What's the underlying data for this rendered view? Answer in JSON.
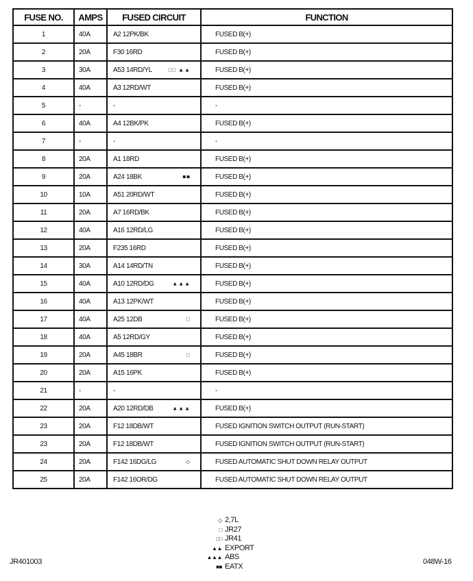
{
  "headers": {
    "fuse_no": "FUSE NO.",
    "amps": "AMPS",
    "circuit": "FUSED CIRCUIT",
    "function": "FUNCTION"
  },
  "rows": [
    {
      "no": "1",
      "amps": "40A",
      "circuit": "A2 12PK/BK",
      "sym": "",
      "function": "FUSED B(+)"
    },
    {
      "no": "2",
      "amps": "20A",
      "circuit": "F30 16RD",
      "sym": "",
      "function": "FUSED B(+)"
    },
    {
      "no": "3",
      "amps": "30A",
      "circuit": "A53 14RD/YL",
      "sym": "□□ ▲▲",
      "function": "FUSED B(+)"
    },
    {
      "no": "4",
      "amps": "40A",
      "circuit": "A3 12RD/WT",
      "sym": "",
      "function": "FUSED B(+)"
    },
    {
      "no": "5",
      "amps": "-",
      "circuit": "-",
      "sym": "",
      "function": "-"
    },
    {
      "no": "6",
      "amps": "40A",
      "circuit": "A4 12BK/PK",
      "sym": "",
      "function": "FUSED B(+)"
    },
    {
      "no": "7",
      "amps": "-",
      "circuit": "-",
      "sym": "",
      "function": "-"
    },
    {
      "no": "8",
      "amps": "20A",
      "circuit": "A1 18RD",
      "sym": "",
      "function": "FUSED B(+)"
    },
    {
      "no": "9",
      "amps": "20A",
      "circuit": "A24 18BK",
      "sym": "■■",
      "function": "FUSED B(+)"
    },
    {
      "no": "10",
      "amps": "10A",
      "circuit": "A51 20RD/WT",
      "sym": "",
      "function": "FUSED B(+)"
    },
    {
      "no": "11",
      "amps": "20A",
      "circuit": "A7 16RD/BK",
      "sym": "",
      "function": "FUSED B(+)"
    },
    {
      "no": "12",
      "amps": "40A",
      "circuit": "A16 12RD/LG",
      "sym": "",
      "function": "FUSED B(+)"
    },
    {
      "no": "13",
      "amps": "20A",
      "circuit": "F235 16RD",
      "sym": "",
      "function": "FUSED B(+)"
    },
    {
      "no": "14",
      "amps": "30A",
      "circuit": "A14 14RD/TN",
      "sym": "",
      "function": "FUSED B(+)"
    },
    {
      "no": "15",
      "amps": "40A",
      "circuit": "A10 12RD/DG",
      "sym": "▲▲▲",
      "function": "FUSED B(+)"
    },
    {
      "no": "16",
      "amps": "40A",
      "circuit": "A13 12PK/WT",
      "sym": "",
      "function": "FUSED B(+)"
    },
    {
      "no": "17",
      "amps": "40A",
      "circuit": "A25 12DB",
      "sym": "□",
      "function": "FUSED B(+)"
    },
    {
      "no": "18",
      "amps": "40A",
      "circuit": "A5 12RD/GY",
      "sym": "",
      "function": "FUSED B(+)"
    },
    {
      "no": "19",
      "amps": "20A",
      "circuit": "A45 18BR",
      "sym": "□",
      "function": "FUSED B(+)"
    },
    {
      "no": "20",
      "amps": "20A",
      "circuit": "A15 16PK",
      "sym": "",
      "function": "FUSED B(+)"
    },
    {
      "no": "21",
      "amps": "-",
      "circuit": "-",
      "sym": "",
      "function": "-"
    },
    {
      "no": "22",
      "amps": "20A",
      "circuit": "A20 12RD/DB",
      "sym": "▲▲▲",
      "function": "FUSED B(+)"
    },
    {
      "no": "23",
      "amps": "20A",
      "circuit": "F12 18DB/WT",
      "sym": "",
      "function": "FUSED IGNITION SWITCH OUTPUT (RUN-START)"
    },
    {
      "no": "23",
      "amps": "20A",
      "circuit": "F12 18DB/WT",
      "sym": "",
      "function": "FUSED IGNITION SWITCH OUTPUT (RUN-START)"
    },
    {
      "no": "24",
      "amps": "20A",
      "circuit": "F142 16DG/LG",
      "sym": "◇",
      "function": "FUSED AUTOMATIC SHUT DOWN RELAY OUTPUT"
    },
    {
      "no": "25",
      "amps": "20A",
      "circuit": "F142 16OR/DG",
      "sym": "",
      "function": "FUSED AUTOMATIC SHUT DOWN RELAY OUTPUT"
    }
  ],
  "legend": [
    {
      "sym": "◇",
      "label": "2,7L"
    },
    {
      "sym": "□",
      "label": "JR27"
    },
    {
      "sym": "□□",
      "label": "JR41"
    },
    {
      "sym": "▲▲",
      "label": "EXPORT"
    },
    {
      "sym": "▲▲▲",
      "label": "ABS"
    },
    {
      "sym": "■■",
      "label": "EATX"
    }
  ],
  "footer": {
    "left": "JR401003",
    "right": "048W-16"
  }
}
